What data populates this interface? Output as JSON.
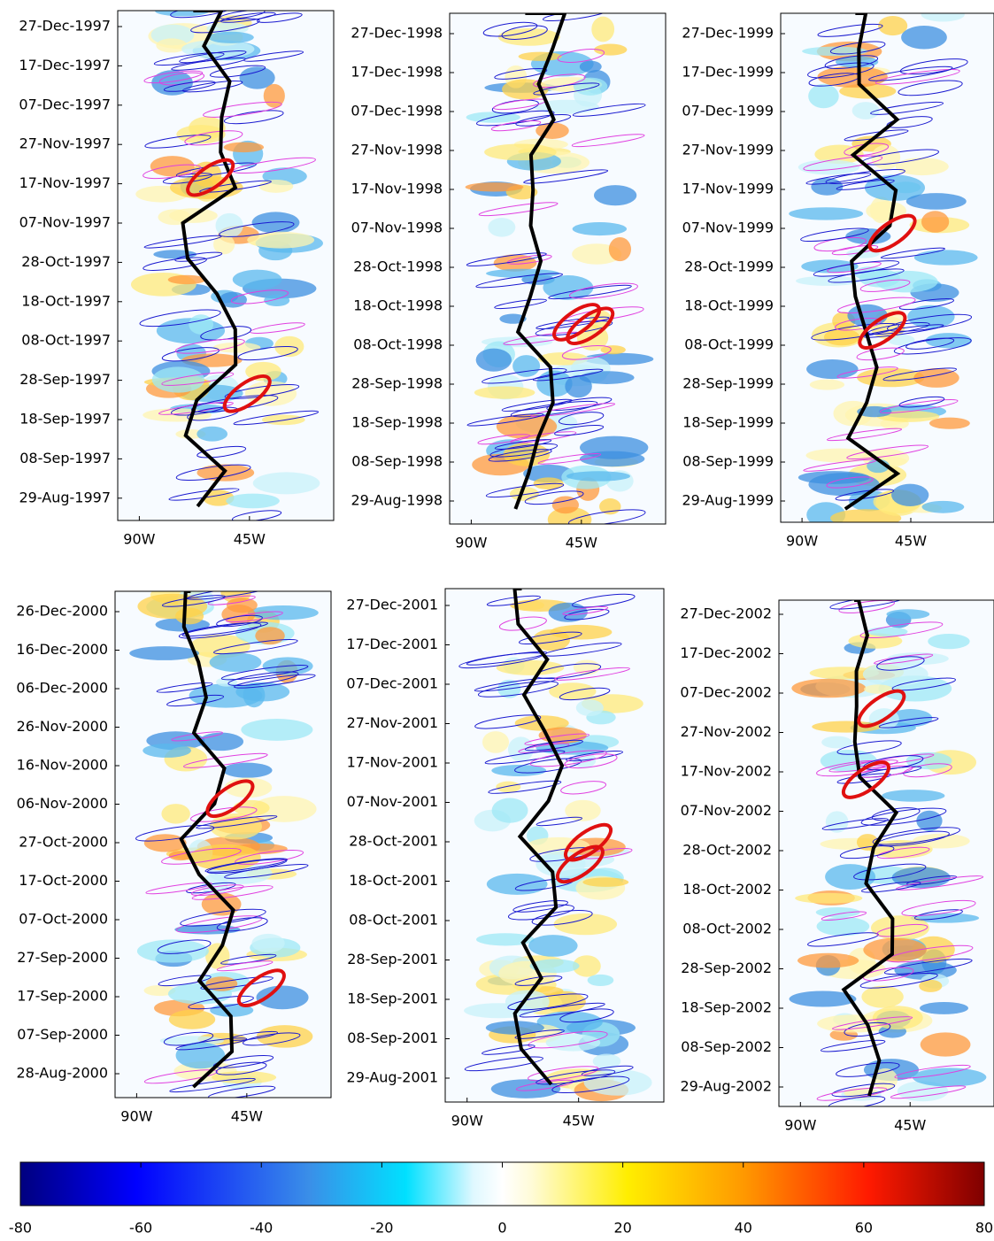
{
  "chart_data": [
    {
      "type": "heatmap",
      "yticklabels": [
        "27-Dec-1997",
        "17-Dec-1997",
        "07-Dec-1997",
        "27-Nov-1997",
        "17-Nov-1997",
        "07-Nov-1997",
        "28-Oct-1997",
        "18-Oct-1997",
        "08-Oct-1997",
        "28-Sep-1997",
        "18-Sep-1997",
        "08-Sep-1997",
        "29-Aug-1997"
      ],
      "xticklabels": [
        "90W",
        "45W"
      ]
    },
    {
      "type": "heatmap",
      "yticklabels": [
        "27-Dec-1998",
        "17-Dec-1998",
        "07-Dec-1998",
        "27-Nov-1998",
        "17-Nov-1998",
        "07-Nov-1998",
        "28-Oct-1998",
        "18-Oct-1998",
        "08-Oct-1998",
        "28-Sep-1998",
        "18-Sep-1998",
        "08-Sep-1998",
        "29-Aug-1998"
      ],
      "xticklabels": [
        "90W",
        "45W"
      ]
    },
    {
      "type": "heatmap",
      "yticklabels": [
        "27-Dec-1999",
        "17-Dec-1999",
        "07-Dec-1999",
        "27-Nov-1999",
        "17-Nov-1999",
        "07-Nov-1999",
        "28-Oct-1999",
        "18-Oct-1999",
        "08-Oct-1999",
        "28-Sep-1999",
        "18-Sep-1999",
        "08-Sep-1999",
        "29-Aug-1999"
      ],
      "xticklabels": [
        "90W",
        "45W"
      ]
    },
    {
      "type": "heatmap",
      "yticklabels": [
        "26-Dec-2000",
        "16-Dec-2000",
        "06-Dec-2000",
        "26-Nov-2000",
        "16-Nov-2000",
        "06-Nov-2000",
        "27-Oct-2000",
        "17-Oct-2000",
        "07-Oct-2000",
        "27-Sep-2000",
        "17-Sep-2000",
        "07-Sep-2000",
        "28-Aug-2000"
      ],
      "xticklabels": [
        "90W",
        "45W"
      ]
    },
    {
      "type": "heatmap",
      "yticklabels": [
        "27-Dec-2001",
        "17-Dec-2001",
        "07-Dec-2001",
        "27-Nov-2001",
        "17-Nov-2001",
        "07-Nov-2001",
        "28-Oct-2001",
        "18-Oct-2001",
        "08-Oct-2001",
        "28-Sep-2001",
        "18-Sep-2001",
        "08-Sep-2001",
        "29-Aug-2001"
      ],
      "xticklabels": [
        "90W",
        "45W"
      ]
    },
    {
      "type": "heatmap",
      "yticklabels": [
        "27-Dec-2002",
        "17-Dec-2002",
        "07-Dec-2002",
        "27-Nov-2002",
        "17-Nov-2002",
        "07-Nov-2002",
        "28-Oct-2002",
        "18-Oct-2002",
        "08-Oct-2002",
        "28-Sep-2002",
        "18-Sep-2002",
        "08-Sep-2002",
        "29-Aug-2002"
      ],
      "xticklabels": [
        "90W",
        "45W"
      ]
    },
    {
      "type": "colorbar",
      "lim": [
        -80,
        80
      ],
      "ticks": [
        -80,
        -60,
        -40,
        -20,
        0,
        20,
        40,
        60,
        80
      ]
    }
  ]
}
